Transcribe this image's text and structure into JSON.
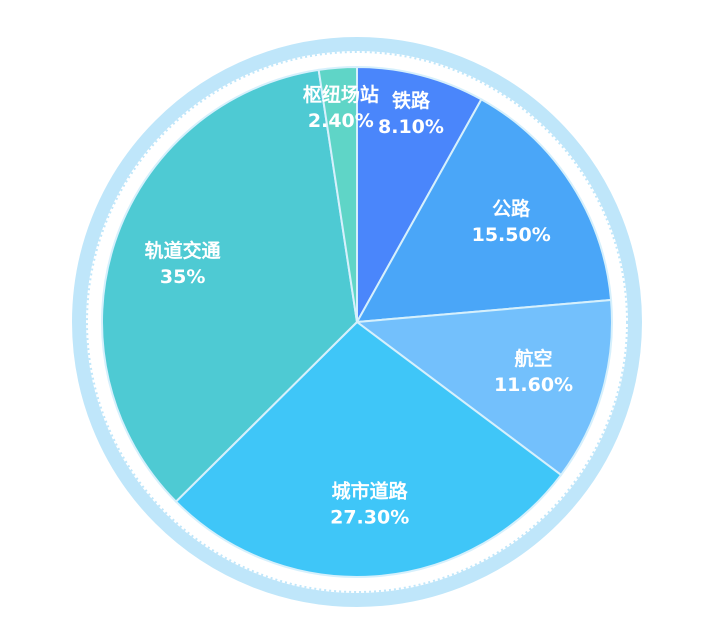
{
  "chart_data": {
    "type": "pie",
    "categories": [
      "铁路",
      "公路",
      "航空",
      "城市道路",
      "轨道交通",
      "枢纽场站"
    ],
    "values": [
      8.1,
      15.5,
      11.6,
      27.3,
      35,
      2.4
    ],
    "value_labels": [
      "8.10%",
      "15.50%",
      "11.60%",
      "27.30%",
      "35%",
      "2.40%"
    ],
    "colors": [
      "#4a86fb",
      "#4aa6f8",
      "#73c0fc",
      "#3fc6f8",
      "#4ecad3",
      "#5fd5c7"
    ],
    "start_angle": 0,
    "direction": "clockwise"
  }
}
